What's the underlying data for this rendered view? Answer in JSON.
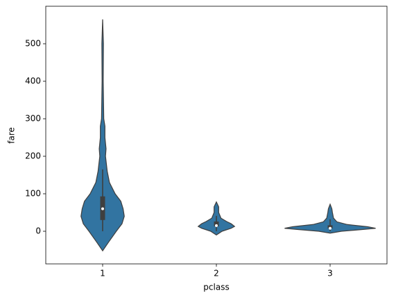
{
  "chart_data": {
    "type": "violin",
    "xlabel": "pclass",
    "ylabel": "fare",
    "categories": [
      "1",
      "2",
      "3"
    ],
    "color": "#3274a1",
    "ylim": [
      -87,
      600
    ],
    "yticks": [
      0,
      100,
      200,
      300,
      400,
      500
    ],
    "violins": [
      {
        "y": [
          -52,
          -30,
          0,
          20,
          40,
          60,
          80,
          100,
          130,
          160,
          200,
          220,
          250,
          280,
          300,
          400,
          500,
          565
        ],
        "width": [
          0,
          0.05,
          0.12,
          0.17,
          0.19,
          0.18,
          0.16,
          0.11,
          0.06,
          0.04,
          0.025,
          0.03,
          0.02,
          0.02,
          0.01,
          0.005,
          0.007,
          0
        ],
        "whisker_low": 0,
        "q1": 30,
        "median": 60,
        "q3": 93,
        "whisker_high": 165
      },
      {
        "y": [
          -10,
          0,
          8,
          13,
          20,
          26,
          35,
          50,
          65,
          78
        ],
        "width": [
          0,
          0.05,
          0.13,
          0.16,
          0.13,
          0.09,
          0.04,
          0.02,
          0.02,
          0
        ],
        "whisker_low": 0,
        "q1": 13,
        "median": 15,
        "q3": 26,
        "whisker_high": 41
      },
      {
        "y": [
          -5,
          0,
          5,
          8,
          12,
          18,
          25,
          35,
          50,
          60,
          72
        ],
        "width": [
          0,
          0.1,
          0.3,
          0.4,
          0.33,
          0.15,
          0.06,
          0.03,
          0.02,
          0.015,
          0
        ],
        "whisker_low": 0,
        "q1": 8,
        "median": 8,
        "q3": 16,
        "whisker_high": 32
      }
    ]
  }
}
